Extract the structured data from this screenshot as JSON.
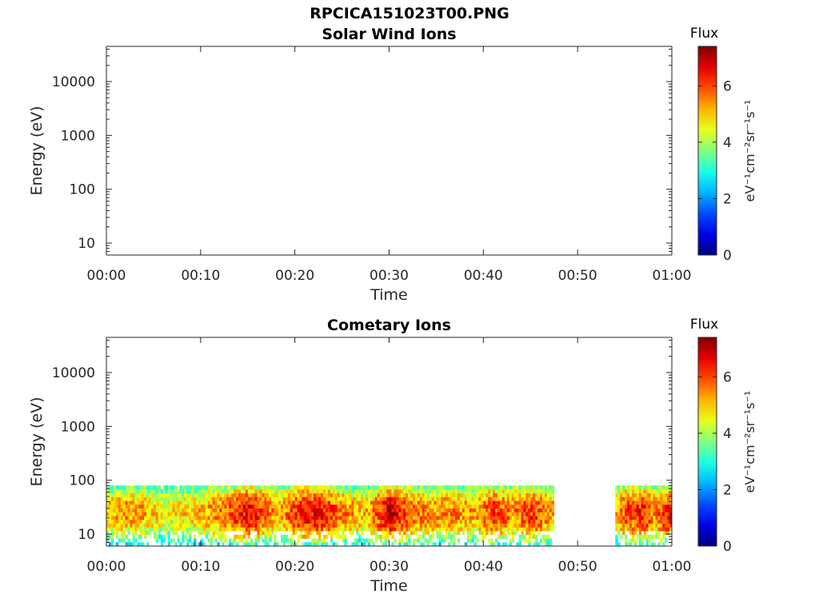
{
  "figure": {
    "title": "RPCICA151023T00.PNG"
  },
  "colors": {
    "axis": "#262626",
    "background": "#ffffff",
    "colormap": "jet"
  },
  "chart_data": [
    {
      "type": "heatmap",
      "title": "Solar Wind Ions",
      "xlabel": "Time",
      "ylabel": "Energy (eV)",
      "y_scale": "log",
      "x_ticks": [
        "00:00",
        "00:10",
        "00:20",
        "00:30",
        "00:40",
        "00:50",
        "01:00"
      ],
      "x_range_minutes": [
        0,
        60
      ],
      "y_ticks": [
        {
          "value": 10,
          "label": "10"
        },
        {
          "value": 100,
          "label": "100"
        },
        {
          "value": 1000,
          "label": "1000"
        },
        {
          "value": 10000,
          "label": "10000"
        }
      ],
      "y_range": [
        6,
        45000
      ],
      "colorbar": {
        "title": "Flux",
        "unit_label": "eV⁻¹cm⁻²sr⁻¹s⁻¹",
        "min": 0,
        "max": 7.4,
        "ticks": [
          "0",
          "2",
          "4",
          "6"
        ]
      },
      "data_segments": []
    },
    {
      "type": "heatmap",
      "title": "Cometary Ions",
      "xlabel": "Time",
      "ylabel": "Energy (eV)",
      "y_scale": "log",
      "x_ticks": [
        "00:00",
        "00:10",
        "00:20",
        "00:30",
        "00:40",
        "00:50",
        "01:00"
      ],
      "x_range_minutes": [
        0,
        60
      ],
      "y_ticks": [
        {
          "value": 10,
          "label": "10"
        },
        {
          "value": 100,
          "label": "100"
        },
        {
          "value": 1000,
          "label": "1000"
        },
        {
          "value": 10000,
          "label": "10000"
        }
      ],
      "y_range": [
        6,
        45000
      ],
      "colorbar": {
        "title": "Flux",
        "unit_label": "eV⁻¹cm⁻²sr⁻¹s⁻¹",
        "min": 0,
        "max": 7.4,
        "ticks": [
          "0",
          "2",
          "4",
          "6"
        ]
      },
      "energy_range_eV": [
        6,
        80
      ],
      "data_segments": [
        {
          "start_minute": 0,
          "end_minute": 47.5
        },
        {
          "start_minute": 54,
          "end_minute": 60
        }
      ],
      "flux_profile": [
        {
          "minute": 0,
          "flux": 5.0
        },
        {
          "minute": 2,
          "flux": 5.4
        },
        {
          "minute": 4,
          "flux": 5.2
        },
        {
          "minute": 6,
          "flux": 4.6
        },
        {
          "minute": 8,
          "flux": 4.8
        },
        {
          "minute": 10,
          "flux": 5.2
        },
        {
          "minute": 12,
          "flux": 5.6
        },
        {
          "minute": 13,
          "flux": 5.8
        },
        {
          "minute": 15,
          "flux": 6.8
        },
        {
          "minute": 16,
          "flux": 6.2
        },
        {
          "minute": 18,
          "flux": 5.2
        },
        {
          "minute": 20,
          "flux": 6.2
        },
        {
          "minute": 21,
          "flux": 6.6
        },
        {
          "minute": 23,
          "flux": 6.4
        },
        {
          "minute": 25,
          "flux": 5.6
        },
        {
          "minute": 27,
          "flux": 5.0
        },
        {
          "minute": 28,
          "flux": 5.4
        },
        {
          "minute": 30,
          "flux": 6.8
        },
        {
          "minute": 32,
          "flux": 5.8
        },
        {
          "minute": 34,
          "flux": 5.4
        },
        {
          "minute": 36,
          "flux": 5.6
        },
        {
          "minute": 38,
          "flux": 5.4
        },
        {
          "minute": 39,
          "flux": 5.2
        },
        {
          "minute": 41,
          "flux": 6.2
        },
        {
          "minute": 43,
          "flux": 5.4
        },
        {
          "minute": 45,
          "flux": 6.2
        },
        {
          "minute": 47,
          "flux": 5.4
        },
        {
          "minute": 54,
          "flux": 5.2
        },
        {
          "minute": 55,
          "flux": 6.0
        },
        {
          "minute": 57,
          "flux": 6.4
        },
        {
          "minute": 58,
          "flux": 5.4
        },
        {
          "minute": 60,
          "flux": 6.8
        }
      ]
    }
  ]
}
